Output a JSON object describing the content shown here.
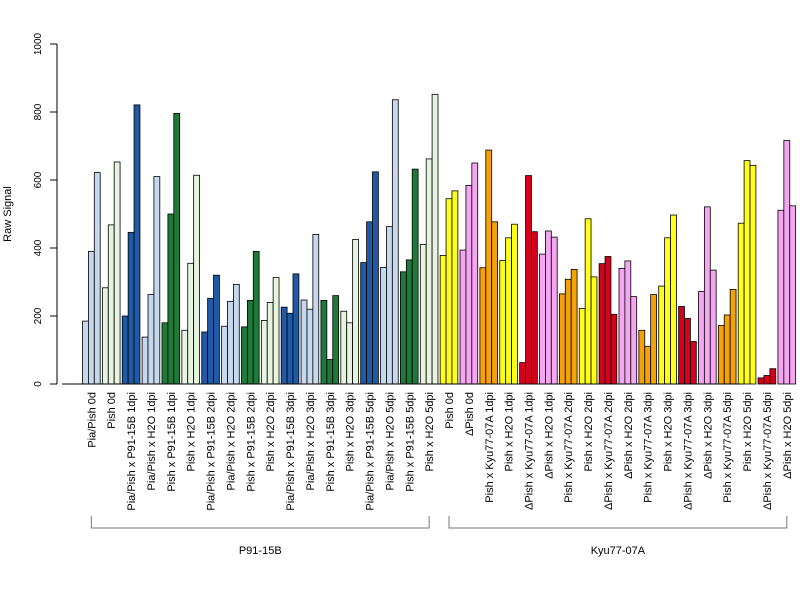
{
  "chart_data": {
    "type": "bar",
    "ylabel": "Raw Signal",
    "ylim": [
      0,
      1000
    ],
    "yticks": [
      0,
      200,
      400,
      600,
      800,
      1000
    ],
    "legend": "none",
    "grid": false,
    "colors": {
      "lightblue": "#c6d8ee",
      "lightgreen": "#e6f3df",
      "darkblue": "#1f5aa6",
      "darkgreen": "#1f7a3a",
      "yellow": "#ffff1a",
      "pink": "#f4a6f1",
      "orange": "#f5a20a",
      "red": "#d6001c",
      "outline": "#000000"
    },
    "categories": [
      {
        "label": "Pia/Pish 0d",
        "color": "lightblue",
        "values": [
          185,
          390,
          622
        ]
      },
      {
        "label": "Pish 0d",
        "color": "lightgreen",
        "values": [
          283,
          468,
          653
        ]
      },
      {
        "label": "Pia/Pish x P91-15B 1dpi",
        "color": "darkblue",
        "values": [
          200,
          446,
          821
        ]
      },
      {
        "label": "Pia/Pish x H2O 1dpi",
        "color": "lightblue",
        "values": [
          138,
          263,
          610
        ]
      },
      {
        "label": "Pish x P91-15B 1dpi",
        "color": "darkgreen",
        "values": [
          180,
          500,
          796
        ]
      },
      {
        "label": "Pish x H2O 1dpi",
        "color": "lightgreen",
        "values": [
          158,
          355,
          614
        ]
      },
      {
        "label": "Pia/Pish x P91-15B 2dpi",
        "color": "darkblue",
        "values": [
          153,
          252,
          320
        ]
      },
      {
        "label": "Pia/Pish x H2O 2dpi",
        "color": "lightblue",
        "values": [
          170,
          243,
          293
        ]
      },
      {
        "label": "Pish x P91-15B 2dpi",
        "color": "darkgreen",
        "values": [
          168,
          246,
          390
        ]
      },
      {
        "label": "Pish x H2O 2dpi",
        "color": "lightgreen",
        "values": [
          187,
          240,
          313
        ]
      },
      {
        "label": "Pia/Pish x P91-15B 3dpi",
        "color": "darkblue",
        "values": [
          226,
          208,
          324
        ]
      },
      {
        "label": "Pia/Pish x H2O 3dpi",
        "color": "lightblue",
        "values": [
          247,
          220,
          440
        ]
      },
      {
        "label": "Pish x P91-15B 3dpi",
        "color": "darkgreen",
        "values": [
          246,
          72,
          260
        ]
      },
      {
        "label": "Pish x H2O 3dpi",
        "color": "lightgreen",
        "values": [
          214,
          180,
          425
        ]
      },
      {
        "label": "Pia/Pish x P91-15B 5dpi",
        "color": "darkblue",
        "values": [
          357,
          477,
          624
        ]
      },
      {
        "label": "Pia/Pish x H2O 5dpi",
        "color": "lightblue",
        "values": [
          343,
          463,
          836
        ]
      },
      {
        "label": "Pish x P91-15B 5dpi",
        "color": "darkgreen",
        "values": [
          330,
          365,
          632
        ]
      },
      {
        "label": "Pish x H2O 5dpi",
        "color": "lightgreen",
        "values": [
          410,
          662,
          852
        ]
      },
      {
        "label": "Pish 0d",
        "color": "yellow",
        "values": [
          378,
          545,
          568
        ]
      },
      {
        "label": "ΔPish 0d",
        "color": "pink",
        "values": [
          394,
          584,
          650
        ]
      },
      {
        "label": "Pish x Kyu77-07A 1dpi",
        "color": "orange",
        "values": [
          342,
          688,
          477
        ]
      },
      {
        "label": "Pish x H2O 1dpi",
        "color": "yellow",
        "values": [
          363,
          430,
          470
        ]
      },
      {
        "label": "ΔPish x Kyu77-07A 1dpi",
        "color": "red",
        "values": [
          63,
          613,
          448
        ]
      },
      {
        "label": "ΔPish x H2O 1dpi",
        "color": "pink",
        "values": [
          382,
          450,
          432
        ]
      },
      {
        "label": "Pish x Kyu77-07A 2dpi",
        "color": "orange",
        "values": [
          265,
          308,
          337
        ]
      },
      {
        "label": "Pish x H2O 2dpi",
        "color": "yellow",
        "values": [
          222,
          486,
          315
        ]
      },
      {
        "label": "ΔPish x Kyu77-07A 2dpi",
        "color": "red",
        "values": [
          354,
          375,
          205
        ]
      },
      {
        "label": "ΔPish x H2O 2dpi",
        "color": "pink",
        "values": [
          340,
          362,
          257
        ]
      },
      {
        "label": "Pish x Kyu77-07A 3dpi",
        "color": "orange",
        "values": [
          158,
          111,
          263
        ]
      },
      {
        "label": "Pish x H2O 3dpi",
        "color": "yellow",
        "values": [
          288,
          430,
          497
        ]
      },
      {
        "label": "ΔPish x Kyu77-07A 3dpi",
        "color": "red",
        "values": [
          228,
          193,
          125
        ]
      },
      {
        "label": "ΔPish x H2O 3dpi",
        "color": "pink",
        "values": [
          272,
          521,
          335
        ]
      },
      {
        "label": "Pish x Kyu77-07A 5dpi",
        "color": "orange",
        "values": [
          172,
          203,
          278
        ]
      },
      {
        "label": "Pish x H2O 5dpi",
        "color": "yellow",
        "values": [
          473,
          657,
          643
        ]
      },
      {
        "label": "ΔPish x Kyu77-07A 5dpi",
        "color": "red",
        "values": [
          18,
          25,
          45
        ]
      },
      {
        "label": "ΔPish x H2O 5dpi",
        "color": "pink",
        "values": [
          511,
          716,
          524
        ]
      }
    ],
    "groups": [
      {
        "label": "P91-15B",
        "from": 0,
        "to": 17
      },
      {
        "label": "Kyu77-07A",
        "from": 18,
        "to": 35
      }
    ]
  }
}
